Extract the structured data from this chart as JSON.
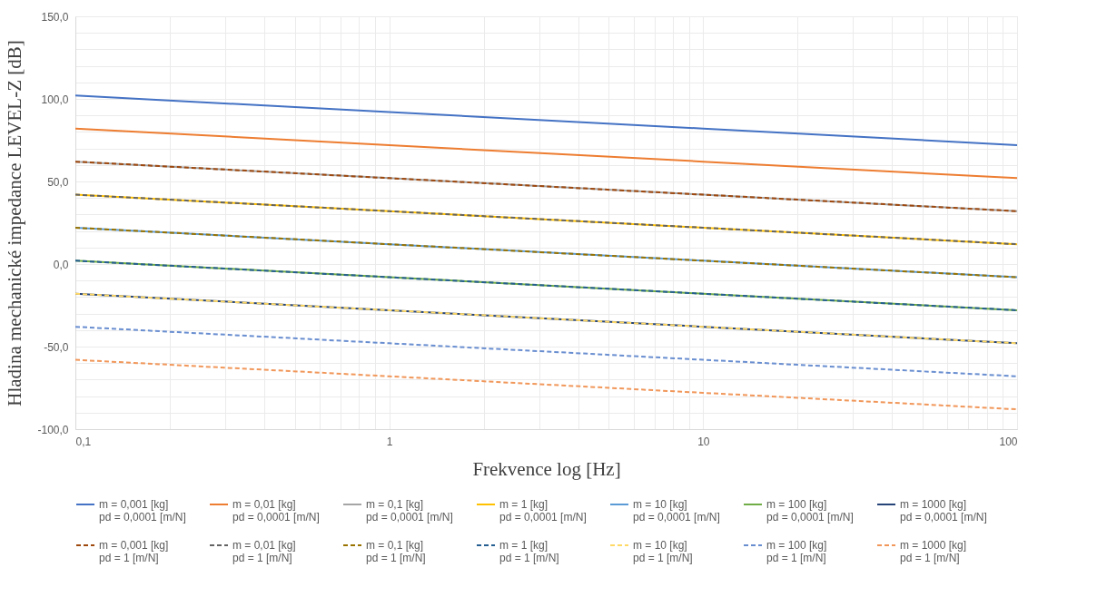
{
  "chart_data": {
    "type": "line",
    "xlabel": "Frekvence log [Hz]",
    "ylabel": "Hladina mechanické impedance LEVEL-Z [dB]",
    "log": "x",
    "xlim": [
      0.1,
      100
    ],
    "xticks": [
      {
        "value": 0.1,
        "label": "0,1"
      },
      {
        "value": 0.2,
        "label": null
      },
      {
        "value": 0.3,
        "label": null
      },
      {
        "value": 0.4,
        "label": null
      },
      {
        "value": 0.5,
        "label": null
      },
      {
        "value": 0.6,
        "label": null
      },
      {
        "value": 0.7,
        "label": null
      },
      {
        "value": 0.8,
        "label": null
      },
      {
        "value": 0.9,
        "label": null
      },
      1,
      {
        "value": 2,
        "label": null
      },
      {
        "value": 3,
        "label": null
      },
      {
        "value": 4,
        "label": null
      },
      {
        "value": 5,
        "label": null
      },
      {
        "value": 6,
        "label": null
      },
      {
        "value": 7,
        "label": null
      },
      {
        "value": 8,
        "label": null
      },
      {
        "value": 9,
        "label": null
      },
      10,
      {
        "value": 20,
        "label": null
      },
      {
        "value": 30,
        "label": null
      },
      {
        "value": 40,
        "label": null
      },
      {
        "value": 50,
        "label": null
      },
      {
        "value": 60,
        "label": null
      },
      {
        "value": 70,
        "label": null
      },
      {
        "value": 80,
        "label": null
      },
      {
        "value": 90,
        "label": null
      },
      100
    ],
    "ylim": [
      -100,
      150
    ],
    "yticks": [
      {
        "value": -100,
        "label": "-100,0"
      },
      {
        "value": -90,
        "label": null
      },
      {
        "value": -80,
        "label": null
      },
      {
        "value": -70,
        "label": null
      },
      {
        "value": -60,
        "label": null
      },
      {
        "value": -50,
        "label": "-50,0"
      },
      {
        "value": -40,
        "label": null
      },
      {
        "value": -30,
        "label": null
      },
      {
        "value": -20,
        "label": null
      },
      {
        "value": -10,
        "label": null
      },
      {
        "value": 0,
        "label": "0,0"
      },
      {
        "value": 10,
        "label": null
      },
      {
        "value": 20,
        "label": null
      },
      {
        "value": 30,
        "label": null
      },
      {
        "value": 40,
        "label": null
      },
      {
        "value": 50,
        "label": "50,0"
      },
      {
        "value": 60,
        "label": null
      },
      {
        "value": 70,
        "label": null
      },
      {
        "value": 80,
        "label": null
      },
      {
        "value": 90,
        "label": null
      },
      {
        "value": 100,
        "label": "100,0"
      },
      {
        "value": 110,
        "label": null
      },
      {
        "value": 120,
        "label": null
      },
      {
        "value": 130,
        "label": null
      },
      {
        "value": 140,
        "label": null
      },
      {
        "value": 150,
        "label": "150,0"
      }
    ],
    "grid": true,
    "legend": "bottom",
    "marker": "none",
    "x": [
      0.1,
      1,
      10,
      100
    ],
    "series": [
      {
        "name": "m = 0,001 [kg]\npd = 0,0001 [m/N]",
        "color": "#4472c4",
        "line_style": "solid",
        "values": [
          102,
          92,
          82,
          72
        ]
      },
      {
        "name": "m = 0,01 [kg]\npd = 0,0001 [m/N]",
        "color": "#ed7d31",
        "line_style": "solid",
        "values": [
          82,
          72,
          62,
          52
        ]
      },
      {
        "name": "m = 0,1 [kg]\npd = 0,0001 [m/N]",
        "color": "#a5a5a5",
        "line_style": "solid",
        "values": [
          62,
          52,
          42,
          32
        ]
      },
      {
        "name": "m = 1 [kg]\npd = 0,0001 [m/N]",
        "color": "#ffc000",
        "line_style": "solid",
        "values": [
          42,
          32,
          22,
          12
        ]
      },
      {
        "name": "m = 10 [kg]\npd = 0,0001 [m/N]",
        "color": "#5b9bd5",
        "line_style": "solid",
        "values": [
          22,
          12,
          2,
          -8
        ]
      },
      {
        "name": "m = 100 [kg]\npd = 0,0001 [m/N]",
        "color": "#70ad47",
        "line_style": "solid",
        "values": [
          2,
          -8,
          -18,
          -28
        ]
      },
      {
        "name": "m = 1000 [kg]\npd = 0,0001 [m/N]",
        "color": "#264478",
        "line_style": "solid",
        "values": [
          -18,
          -28,
          -38,
          -48
        ]
      },
      {
        "name": "m = 0,001 [kg]\npd = 1 [m/N]",
        "color": "#9e480e",
        "line_style": "dashed",
        "values": [
          62,
          52,
          42,
          32
        ]
      },
      {
        "name": "m = 0,01 [kg]\npd = 1 [m/N]",
        "color": "#636363",
        "line_style": "dashed",
        "values": [
          42,
          32,
          22,
          12
        ]
      },
      {
        "name": "m = 0,1 [kg]\npd = 1 [m/N]",
        "color": "#997300",
        "line_style": "dashed",
        "values": [
          22,
          12,
          2,
          -8
        ]
      },
      {
        "name": "m = 1 [kg]\npd = 1 [m/N]",
        "color": "#255e91",
        "line_style": "dashed",
        "values": [
          2,
          -8,
          -18,
          -28
        ]
      },
      {
        "name": "m = 10 [kg]\npd = 1 [m/N]",
        "color": "#ffd966",
        "line_style": "dashed",
        "values": [
          -18,
          -28,
          -38,
          -48
        ]
      },
      {
        "name": "m = 100 [kg]\npd = 1 [m/N]",
        "color": "#698ed0",
        "line_style": "dashed",
        "values": [
          -38,
          -48,
          -58,
          -68
        ]
      },
      {
        "name": "m = 1000 [kg]\npd = 1 [m/N]",
        "color": "#f1975a",
        "line_style": "dashed",
        "values": [
          -58,
          -68,
          -78,
          -88
        ]
      }
    ]
  }
}
